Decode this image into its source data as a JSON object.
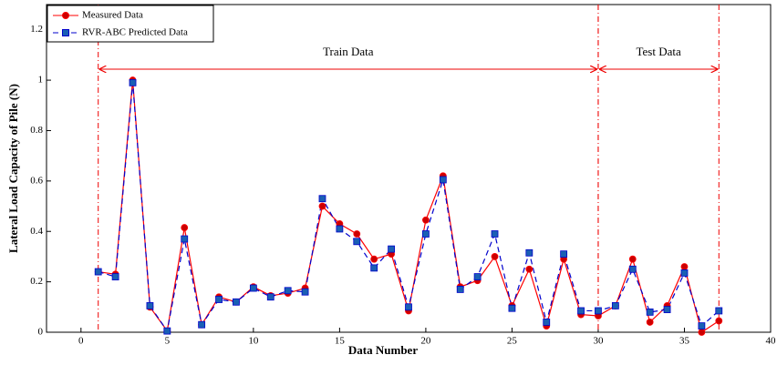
{
  "chart_data": {
    "type": "line",
    "xlabel": "Data Number",
    "ylabel": "Lateral Load Capacity of Pile (N)",
    "x": [
      1,
      2,
      3,
      4,
      5,
      6,
      7,
      8,
      9,
      10,
      11,
      12,
      13,
      14,
      15,
      16,
      17,
      18,
      19,
      20,
      21,
      22,
      23,
      24,
      25,
      26,
      27,
      28,
      29,
      30,
      31,
      32,
      33,
      34,
      35,
      36,
      37
    ],
    "series": [
      {
        "name": "Measured Data",
        "color": "#ff0000",
        "marker": "circle",
        "markerfill": "#cc0000",
        "dashed": false,
        "values": [
          0.24,
          0.23,
          1.0,
          0.1,
          0.005,
          0.415,
          0.03,
          0.14,
          0.12,
          0.18,
          0.145,
          0.155,
          0.175,
          0.5,
          0.43,
          0.39,
          0.29,
          0.31,
          0.085,
          0.445,
          0.62,
          0.18,
          0.205,
          0.3,
          0.105,
          0.25,
          0.025,
          0.29,
          0.07,
          0.065,
          0.105,
          0.29,
          0.04,
          0.105,
          0.26,
          0.0,
          0.045
        ]
      },
      {
        "name": "RVR-ABC Predicted Data",
        "color": "#0000cc",
        "marker": "square",
        "markerfill": "#1a5fb4",
        "dashed": true,
        "values": [
          0.24,
          0.22,
          0.99,
          0.105,
          0.005,
          0.37,
          0.03,
          0.13,
          0.12,
          0.175,
          0.14,
          0.165,
          0.16,
          0.53,
          0.41,
          0.36,
          0.255,
          0.33,
          0.1,
          0.39,
          0.605,
          0.17,
          0.22,
          0.39,
          0.095,
          0.315,
          0.04,
          0.31,
          0.085,
          0.085,
          0.105,
          0.25,
          0.08,
          0.09,
          0.235,
          0.025,
          0.085
        ]
      }
    ],
    "regions": [
      {
        "label": "Train Data",
        "start": 1,
        "end": 30
      },
      {
        "label": "Test Data",
        "start": 30,
        "end": 37
      }
    ],
    "xlim": [
      -2,
      40
    ],
    "xticks": [
      0,
      5,
      10,
      15,
      20,
      25,
      30,
      35,
      40
    ],
    "ylim": [
      0,
      1.3
    ],
    "yticks": [
      0,
      0.2,
      0.4,
      0.6,
      0.8,
      1,
      1.2
    ],
    "grid": false,
    "legend": "upper left"
  }
}
